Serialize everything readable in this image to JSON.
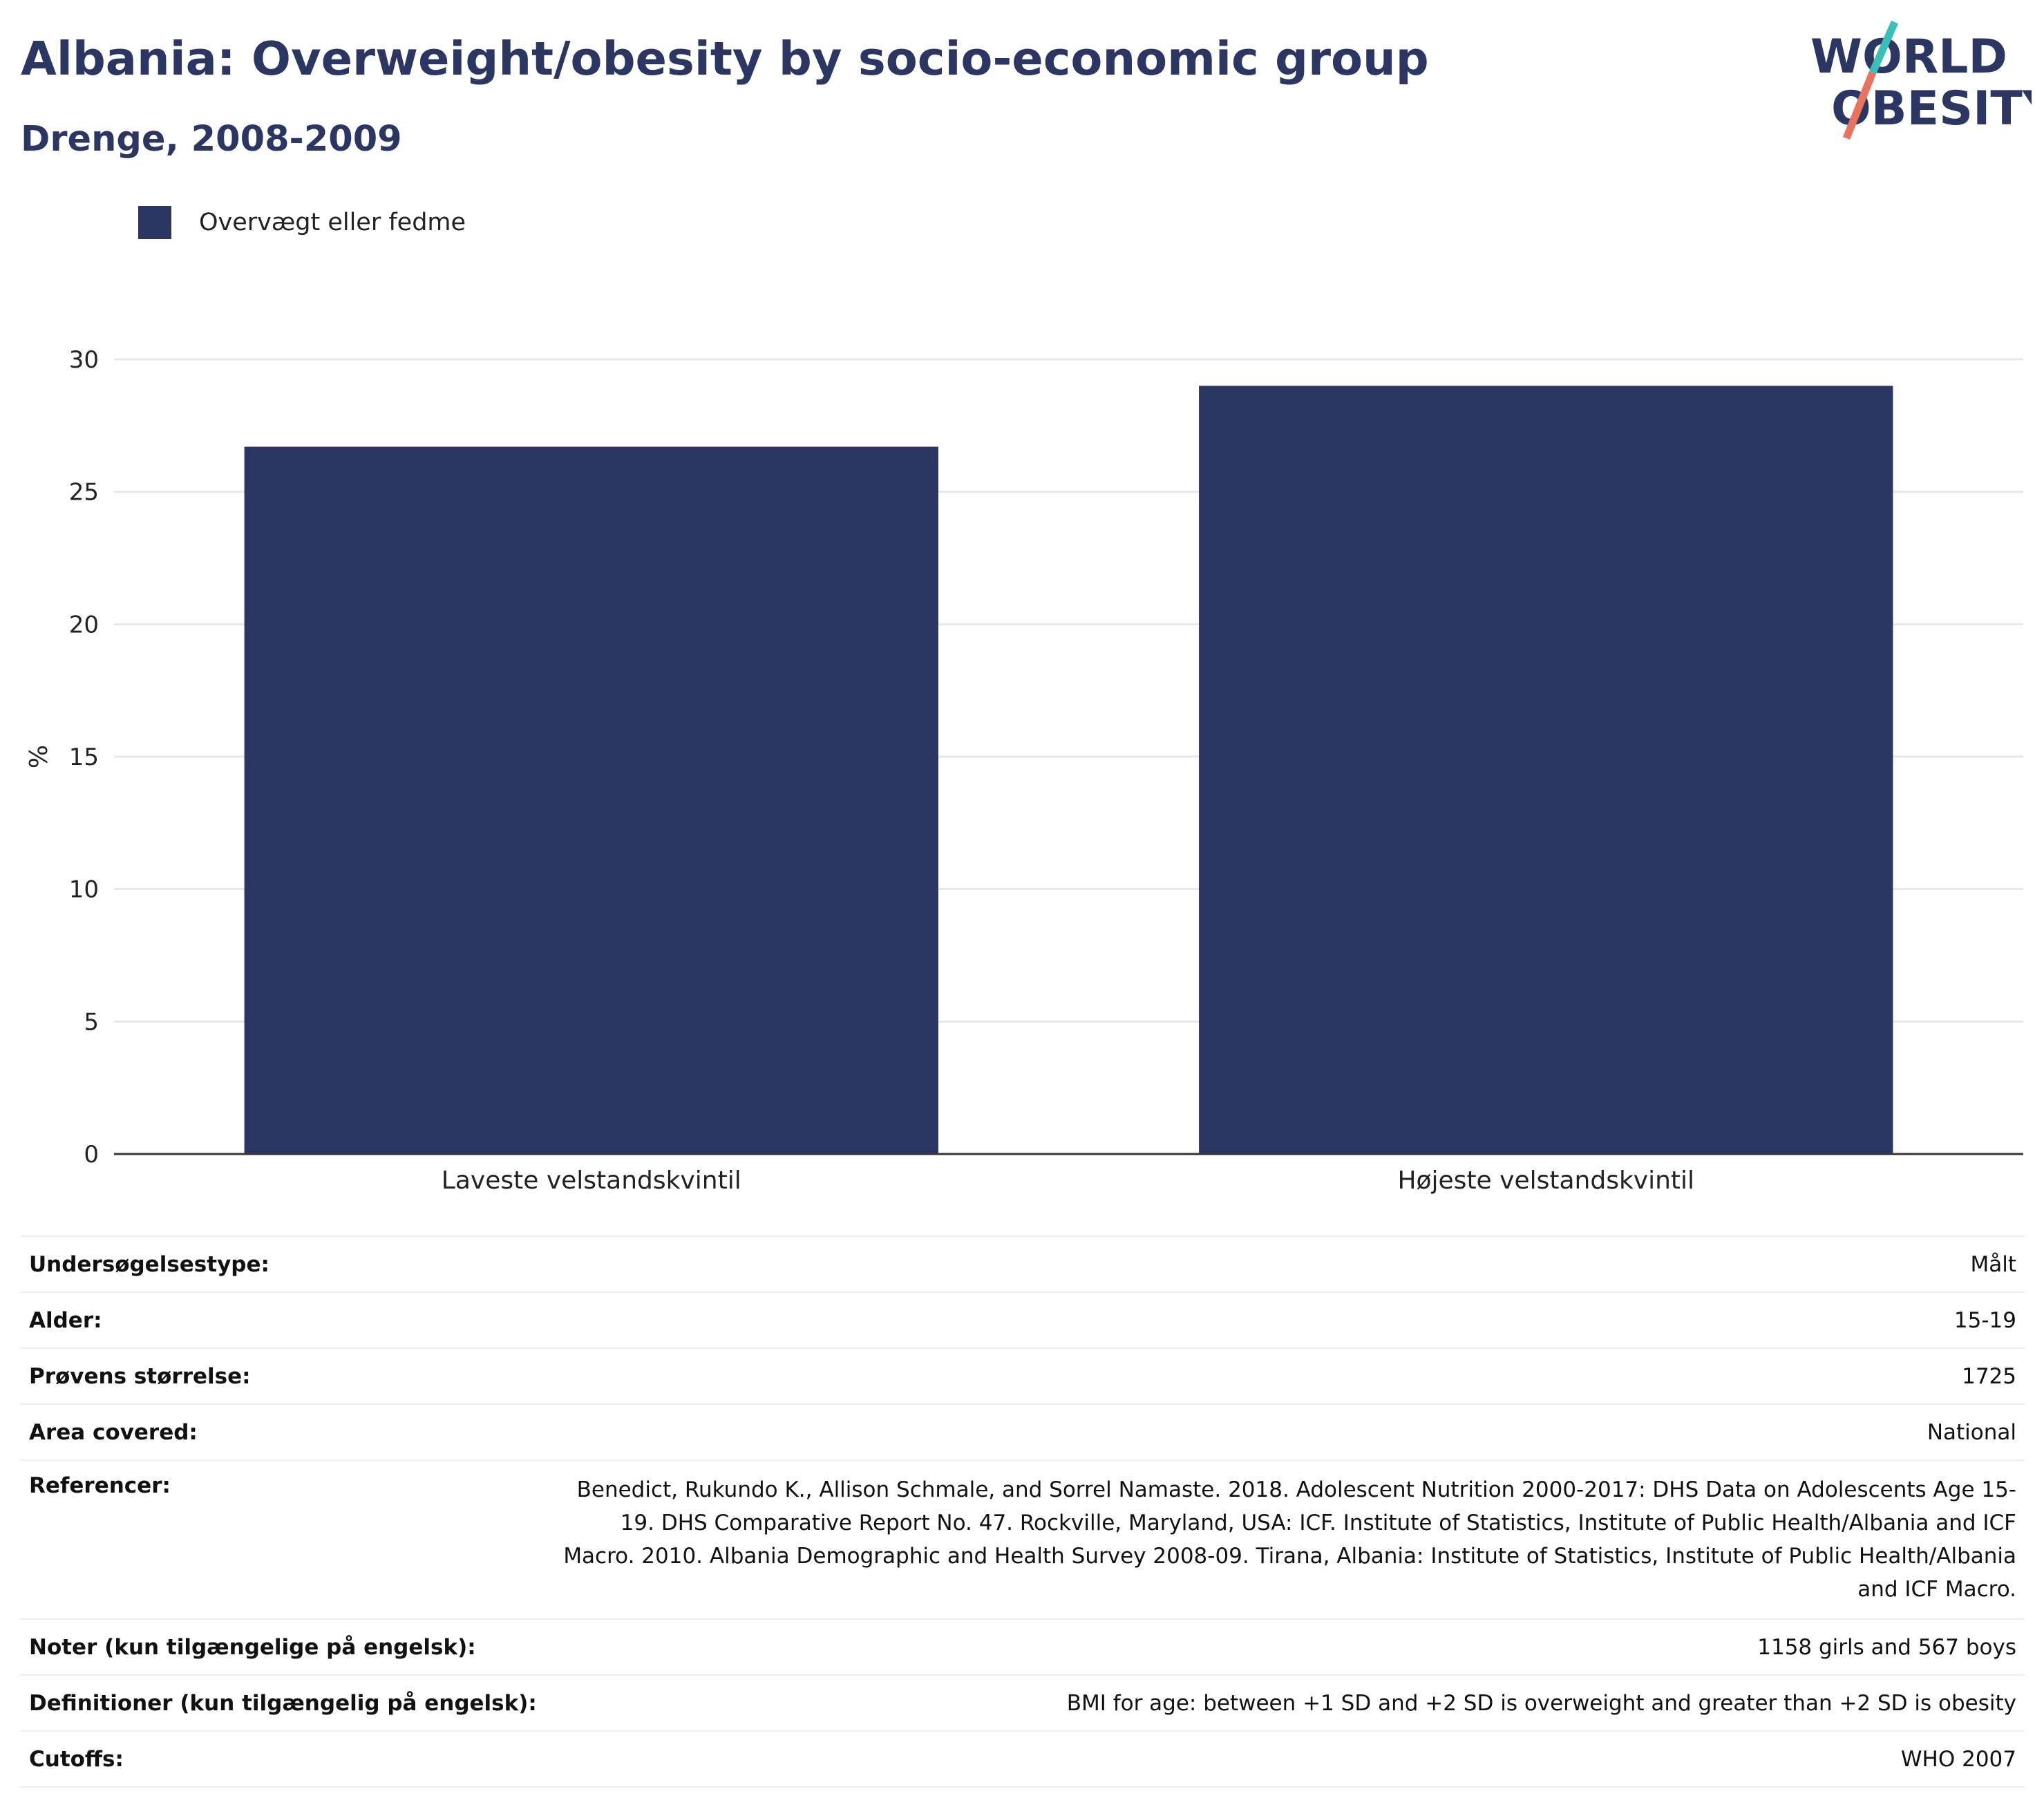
{
  "header": {
    "title": "Albania: Overweight/obesity by socio-economic group",
    "subtitle": "Drenge, 2008-2009"
  },
  "logo": {
    "line1": "WORLD",
    "line2": "OBESITY",
    "colors": {
      "text": "#2b3663",
      "slash_top": "#3bbdb8",
      "slash_bottom": "#e8735e"
    }
  },
  "colors": {
    "bar": "#2b3663",
    "grid": "#e6e6ee",
    "axis": "#333333"
  },
  "chart_data": {
    "type": "bar",
    "categories": [
      "Laveste velstandskvintil",
      "Højeste velstandskvintil"
    ],
    "series": [
      {
        "name": "Overvægt eller fedme",
        "values": [
          26.7,
          29.0
        ]
      }
    ],
    "ylabel": "%",
    "xlabel": "",
    "ylim": [
      0,
      30
    ],
    "yticks": [
      0,
      5,
      10,
      15,
      20,
      25,
      30
    ],
    "grid": true,
    "legend": "top-left"
  },
  "info": [
    {
      "key": "Undersøgelsestype:",
      "value": "Målt"
    },
    {
      "key": "Alder:",
      "value": "15-19"
    },
    {
      "key": "Prøvens størrelse:",
      "value": "1725"
    },
    {
      "key": "Area covered:",
      "value": "National"
    },
    {
      "key": "Referencer:",
      "value": "Benedict, Rukundo K., Allison Schmale, and Sorrel Namaste. 2018. Adolescent Nutrition 2000-2017: DHS Data on Adolescents Age 15-19. DHS Comparative Report No. 47. Rockville, Maryland, USA: ICF. Institute of Statistics, Institute of Public Health/Albania and ICF Macro. 2010. Albania Demographic and Health Survey 2008-09. Tirana, Albania: Institute of Statistics, Institute of Public Health/Albania and ICF Macro."
    },
    {
      "key": "Noter (kun tilgængelige på engelsk):",
      "value": "1158 girls and 567 boys"
    },
    {
      "key": "Definitioner (kun tilgængelig på engelsk):",
      "value": "BMI for age: between +1 SD and +2 SD is overweight and greater than +2 SD is obesity"
    },
    {
      "key": "Cutoffs:",
      "value": "WHO 2007"
    }
  ]
}
